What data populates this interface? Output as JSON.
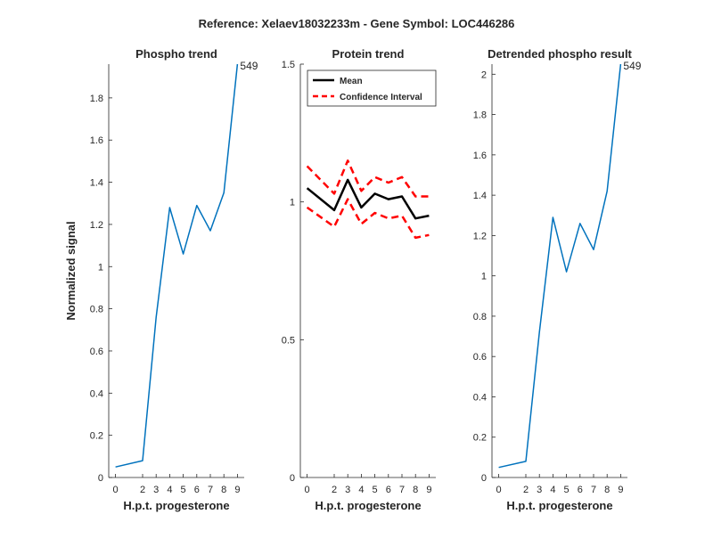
{
  "figure": {
    "suptitle": "Reference:  Xelaev18032233m - Gene Symbol:  LOC446286"
  },
  "chart_data": [
    {
      "type": "line",
      "title": "Phospho trend",
      "xlabel": "H.p.t. progesterone",
      "ylabel": "Normalized signal",
      "x": [
        0,
        2,
        3,
        4,
        5,
        6,
        7,
        8,
        9
      ],
      "xlim": [
        -0.5,
        9.5
      ],
      "ylim": [
        0,
        1.96
      ],
      "yticks": [
        0,
        0.2,
        0.4,
        0.6,
        0.8,
        1,
        1.2,
        1.4,
        1.6,
        1.8
      ],
      "series": [
        {
          "values": [
            0.05,
            0.08,
            0.76,
            1.28,
            1.06,
            1.29,
            1.17,
            1.35,
            1.96
          ],
          "color": "#0072bd",
          "style": "solid",
          "width": 1.5
        }
      ],
      "annotations": [
        {
          "text": "549",
          "x": 9,
          "y": 1.96
        }
      ]
    },
    {
      "type": "line",
      "title": "Protein trend",
      "xlabel": "H.p.t. progesterone",
      "ylabel": "",
      "x": [
        0,
        2,
        3,
        4,
        5,
        6,
        7,
        8,
        9
      ],
      "xlim": [
        -0.5,
        9.5
      ],
      "ylim": [
        0,
        1.5
      ],
      "yticks": [
        0,
        0.5,
        1,
        1.5
      ],
      "series": [
        {
          "name": "Mean",
          "values": [
            1.05,
            0.97,
            1.08,
            0.98,
            1.03,
            1.01,
            1.02,
            0.94,
            0.95
          ],
          "color": "#000000",
          "style": "solid",
          "width": 2.5
        },
        {
          "name": "Confidence Interval",
          "values": [
            1.13,
            1.03,
            1.15,
            1.04,
            1.09,
            1.07,
            1.09,
            1.02,
            1.02
          ],
          "color": "#ff0000",
          "style": "dashed",
          "width": 2.5
        },
        {
          "name": "",
          "values": [
            0.98,
            0.91,
            1.01,
            0.92,
            0.96,
            0.94,
            0.95,
            0.87,
            0.88
          ],
          "color": "#ff0000",
          "style": "dashed",
          "width": 2.5
        }
      ],
      "legend": {
        "position": "top-right",
        "entries": [
          "Mean",
          "Confidence Interval"
        ]
      }
    },
    {
      "type": "line",
      "title": "Detrended phospho result",
      "xlabel": "H.p.t. progesterone",
      "ylabel": "",
      "x": [
        0,
        2,
        3,
        4,
        5,
        6,
        7,
        8,
        9
      ],
      "xlim": [
        -0.5,
        9.5
      ],
      "ylim": [
        0,
        2.05
      ],
      "yticks": [
        0,
        0.2,
        0.4,
        0.6,
        0.8,
        1,
        1.2,
        1.4,
        1.6,
        1.8,
        2
      ],
      "series": [
        {
          "values": [
            0.05,
            0.08,
            0.72,
            1.29,
            1.02,
            1.26,
            1.13,
            1.42,
            2.05
          ],
          "color": "#0072bd",
          "style": "solid",
          "width": 1.5
        }
      ],
      "annotations": [
        {
          "text": "549",
          "x": 9,
          "y": 2.05
        }
      ]
    }
  ]
}
